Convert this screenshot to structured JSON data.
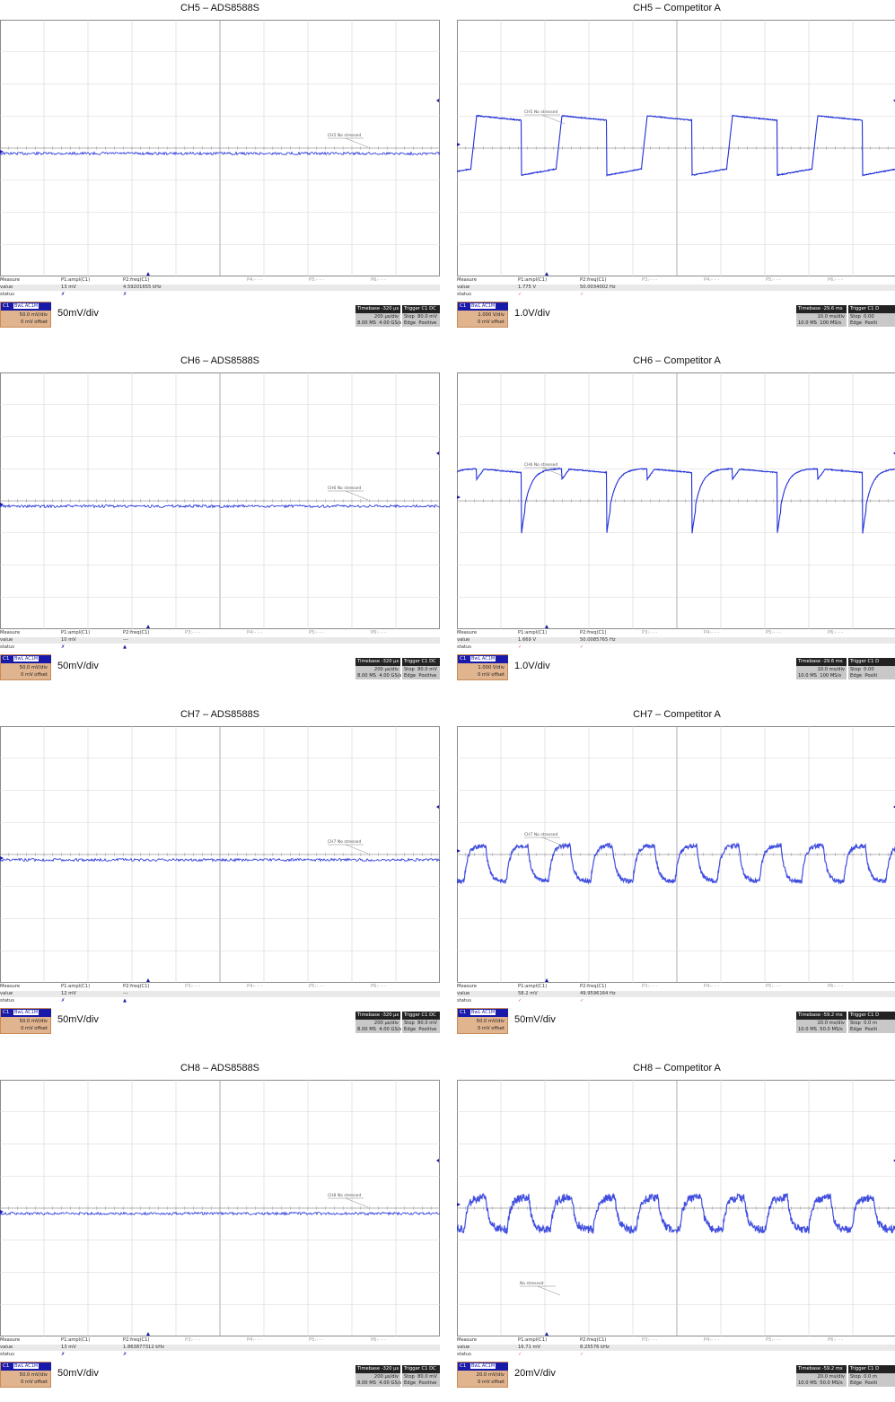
{
  "colors": {
    "trace": "#1f2fd8",
    "grid": "#c0c0c0",
    "badge_bg": "#e0b48f",
    "channel_header": "#1a1aaa",
    "check_mark": "#e040a0"
  },
  "measure_headers": {
    "measure": "Measure",
    "value": "value",
    "status": "status",
    "p3": "P3:- - -",
    "p4": "P4:- - -",
    "p5": "P5:- - -",
    "p6": "P6:- - -",
    "trigger": "Trigger",
    "timebase": "Timebase"
  },
  "panels": [
    {
      "title": "CH5 – ADS8588S",
      "p1_label": "P1:ampl(C1)",
      "p1_value": "13 mV",
      "p1_status": "✗",
      "p2_label": "P2:freq(C1)",
      "p2_value": "4.59201655 kHz",
      "p2_status": "✗",
      "p3_label": "",
      "ch_tag": "C1",
      "coupling": "BwL AC1M",
      "vdiv": "50.0 mV/div",
      "offset": "0 mV offset",
      "scale_text": "50mV/div",
      "timebase": "-320 µs",
      "tdiv": "200 µs/div",
      "samples": "8.00 MS",
      "rate": "4.00 GS/s",
      "trig_mode": "Stop",
      "trig_level": "80.0 mV",
      "trig_type": "Edge",
      "trig_slope": "Positive",
      "trig_src": "C1 DC",
      "annotation": "CH5 No stressed",
      "trace": "flat"
    },
    {
      "title": "CH5 – Competitor A",
      "p1_label": "P1:ampl(C1)",
      "p1_value": "1.775 V",
      "p1_status": "✓",
      "p2_label": "P2:freq(C1)",
      "p2_value": "50.0034002 Hz",
      "p2_status": "✓",
      "p3_label": "P3:- - -",
      "ch_tag": "C1",
      "coupling": "BwL AC1M",
      "vdiv": "1.000 V/div",
      "offset": "0 mV offset",
      "scale_text": "1.0V/div",
      "timebase": "-29.6 ms",
      "tdiv": "10.0 ms/div",
      "samples": "10.0 MS",
      "rate": "100 MS/s",
      "trig_mode": "Stop",
      "trig_level": "0.00",
      "trig_type": "Edge",
      "trig_slope": "Positi",
      "trig_src": "C1 D",
      "annotation": "CH5 No stressed",
      "trace": "squareA"
    },
    {
      "title": "CH6 – ADS8588S",
      "p1_label": "P1:ampl(C1)",
      "p1_value": "10 mV",
      "p1_status": "✗",
      "p2_label": "P2:freq(C1)",
      "p2_value": "---",
      "p2_status": "▲",
      "p3_label": "P3:- - -",
      "ch_tag": "C1",
      "coupling": "BwL AC1M",
      "vdiv": "50.0 mV/div",
      "offset": "0 mV offset",
      "scale_text": "50mV/div",
      "timebase": "-320 µs",
      "tdiv": "200 µs/div",
      "samples": "8.00 MS",
      "rate": "4.00 GS/s",
      "trig_mode": "Stop",
      "trig_level": "80.0 mV",
      "trig_type": "Edge",
      "trig_slope": "Positive",
      "trig_src": "C1 DC",
      "annotation": "CH6 No stressed",
      "trace": "flat"
    },
    {
      "title": "CH6 – Competitor A",
      "p1_label": "P1:ampl(C1)",
      "p1_value": "1.669 V",
      "p1_status": "✓",
      "p2_label": "P2:freq(C1)",
      "p2_value": "50.0085765 Hz",
      "p2_status": "✓",
      "p3_label": "P3:- - -",
      "ch_tag": "C1",
      "coupling": "BwL AC1M",
      "vdiv": "1.000 V/div",
      "offset": "0 mV offset",
      "scale_text": "1.0V/div",
      "timebase": "-29.6 ms",
      "tdiv": "10.0 ms/div",
      "samples": "10.0 MS",
      "rate": "100 MS/s",
      "trig_mode": "Stop",
      "trig_level": "0.00",
      "trig_type": "Edge",
      "trig_slope": "Positi",
      "trig_src": "C1 D",
      "annotation": "CH6 No stressed",
      "trace": "squareB"
    },
    {
      "title": "CH7 – ADS8588S",
      "p1_label": "P1:ampl(C1)",
      "p1_value": "12 mV",
      "p1_status": "✗",
      "p2_label": "P2:freq(C1)",
      "p2_value": "---",
      "p2_status": "▲",
      "p3_label": "P3:- - -",
      "ch_tag": "C1",
      "coupling": "BwL AC1M",
      "vdiv": "50.0 mV/div",
      "offset": "0 mV offset",
      "scale_text": "50mV/div",
      "timebase": "-320 µs",
      "tdiv": "200 µs/div",
      "samples": "8.00 MS",
      "rate": "4.00 GS/s",
      "trig_mode": "Stop",
      "trig_level": "80.0 mV",
      "trig_type": "Edge",
      "trig_slope": "Positive",
      "trig_src": "C1 DC",
      "annotation": "CH7 No stressed",
      "trace": "flat"
    },
    {
      "title": "CH7 – Competitor A",
      "p1_label": "P1:ampl(C1)",
      "p1_value": "58.2 mV",
      "p1_status": "✓",
      "p2_label": "P2:freq(C1)",
      "p2_value": "49.9596164 Hz",
      "p2_status": "✓",
      "p3_label": "P3:- - -",
      "ch_tag": "C1",
      "coupling": "BwL AC1M",
      "vdiv": "50.0 mV/div",
      "offset": "0 mV offset",
      "scale_text": "50mV/div",
      "timebase": "-59.2 ms",
      "tdiv": "20.0 ms/div",
      "samples": "10.0 MS",
      "rate": "50.0 MS/s",
      "trig_mode": "Stop",
      "trig_level": "0.0 m",
      "trig_type": "Edge",
      "trig_slope": "Positi",
      "trig_src": "C1 D",
      "annotation": "CH7 No stressed",
      "trace": "noisyA"
    },
    {
      "title": "CH8 – ADS8588S",
      "p1_label": "P1:ampl(C1)",
      "p1_value": "13 mV",
      "p1_status": "✗",
      "p2_label": "P2:freq(C1)",
      "p2_value": "1.863877312 kHz",
      "p2_status": "✗",
      "p3_label": "P3:- - -",
      "ch_tag": "C1",
      "coupling": "BwL AC1M",
      "vdiv": "50.0 mV/div",
      "offset": "0 mV offset",
      "scale_text": "50mV/div",
      "timebase": "-320 µs",
      "tdiv": "200 µs/div",
      "samples": "8.00 MS",
      "rate": "4.00 GS/s",
      "trig_mode": "Stop",
      "trig_level": "80.0 mV",
      "trig_type": "Edge",
      "trig_slope": "Positive",
      "trig_src": "C1 DC",
      "annotation": "CH8 No stressed",
      "trace": "flat"
    },
    {
      "title": "CH8 – Competitor A",
      "p1_label": "P1:ampl(C1)",
      "p1_value": "16.71 mV",
      "p1_status": "✓",
      "p2_label": "P2:freq(C1)",
      "p2_value": "8.25576 kHz",
      "p2_status": "✓",
      "p3_label": "P3:- - -",
      "ch_tag": "C1",
      "coupling": "BwL AC1M",
      "vdiv": "20.0 mV/div",
      "offset": "0 mV offset",
      "scale_text": "20mV/div",
      "timebase": "-59.2 ms",
      "tdiv": "20.0 ms/div",
      "samples": "10.0 MS",
      "rate": "50.0 MS/s",
      "trig_mode": "Stop",
      "trig_level": "0.0 m",
      "trig_type": "Edge",
      "trig_slope": "Positi",
      "trig_src": "C1 D",
      "annotation": "No stressed",
      "trace": "noisyB"
    }
  ]
}
